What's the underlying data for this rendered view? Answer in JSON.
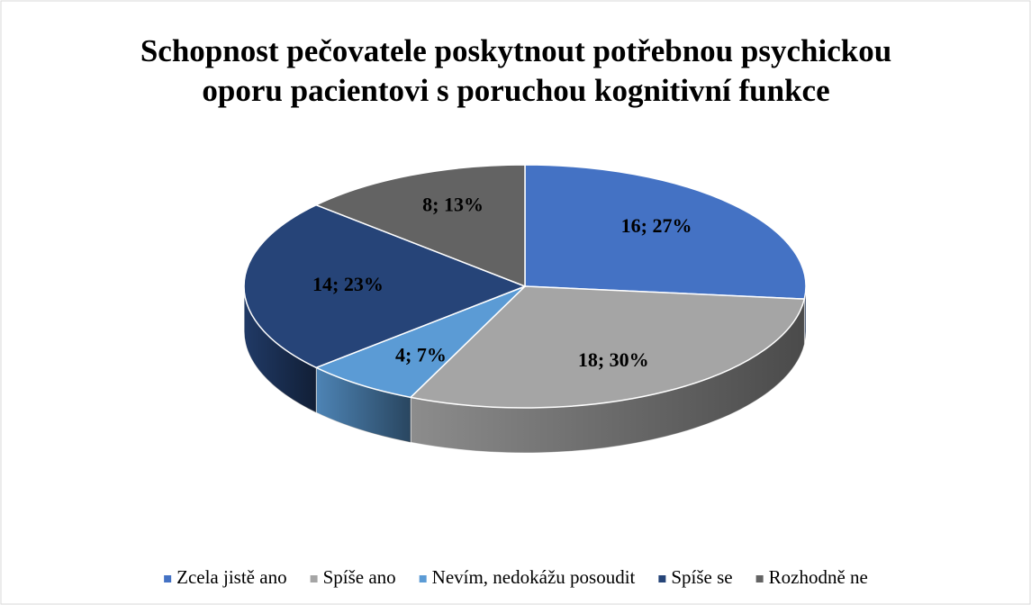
{
  "chart_data": {
    "type": "pie3d",
    "title": [
      "Schopnost pečovatele poskytnout potřebnou psychickou",
      "oporu pacientovi s poruchou kognitivní funkce"
    ],
    "categories": [
      "Zcela jistě ano",
      "Spíše ano",
      "Nevím, nedokážu posoudit",
      "Spíše se",
      "Rozhodně ne"
    ],
    "values": [
      16,
      18,
      4,
      14,
      8
    ],
    "value_labels": [
      "16; 27%",
      "18; 30%",
      "4; 7%",
      "14; 23%",
      "8; 13%"
    ],
    "colors": [
      "#4472c4",
      "#a5a5a5",
      "#5b9bd5",
      "#264478",
      "#636363"
    ],
    "legend": "bottom"
  }
}
